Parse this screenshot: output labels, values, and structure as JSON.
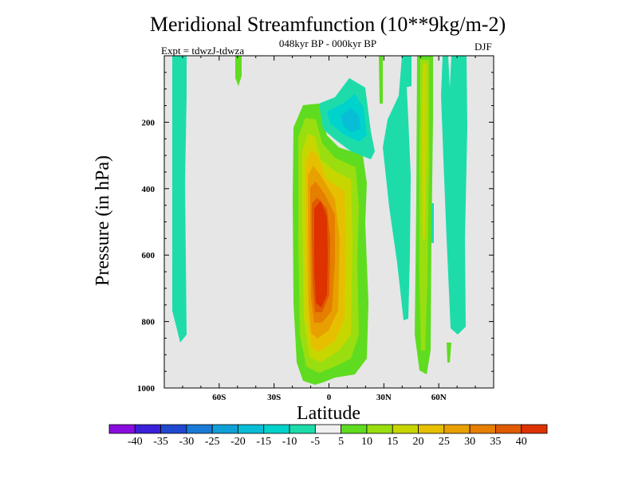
{
  "title": "Meridional Streamfunction (10**9kg/m-2)",
  "subtitle": "048kyr BP - 000kyr BP",
  "left_label": "Expt = tdwzJ-tdwza",
  "right_label": "DJF",
  "background_color": "#e6e6e6",
  "chart_data": {
    "type": "heatmap",
    "title": "Meridional Streamfunction (10**9kg/m-2)",
    "xlabel": "Latitude",
    "ylabel": "Pressure (in hPa)",
    "xlim": [
      -90,
      90
    ],
    "ylim": [
      1000,
      0
    ],
    "x_ticks": [
      {
        "value": -60,
        "label": "60S"
      },
      {
        "value": -30,
        "label": "30S"
      },
      {
        "value": 0,
        "label": "0"
      },
      {
        "value": 30,
        "label": "30N"
      },
      {
        "value": 60,
        "label": "60N"
      }
    ],
    "y_ticks": [
      {
        "value": 200,
        "label": "200"
      },
      {
        "value": 400,
        "label": "400"
      },
      {
        "value": 600,
        "label": "600"
      },
      {
        "value": 800,
        "label": "800"
      },
      {
        "value": 1000,
        "label": "1000"
      }
    ],
    "colorbar": {
      "labels": [
        "-40",
        "-35",
        "-30",
        "-25",
        "-20",
        "-15",
        "-10",
        "-5",
        "5",
        "10",
        "15",
        "20",
        "25",
        "30",
        "35",
        "40"
      ],
      "colors": [
        "#8a0de0",
        "#3a20d9",
        "#2048d0",
        "#1a7ad6",
        "#10a0d8",
        "#08bed6",
        "#00d2cc",
        "#1edcaa",
        "#f0f0f0",
        "#60dc20",
        "#9ade10",
        "#c8d600",
        "#e6c000",
        "#e8a000",
        "#e67e00",
        "#e05a00",
        "#de3200"
      ]
    },
    "features": [
      {
        "name": "Main positive cell",
        "lat_range": [
          -15,
          20
        ],
        "p_range": [
          310,
          990
        ],
        "max_level": "40"
      },
      {
        "name": "Upper negative cell",
        "lat_range": [
          -5,
          20
        ],
        "p_range": [
          130,
          320
        ],
        "min_level": "-15"
      },
      {
        "name": "SH high-lat negative band",
        "lat_range": [
          -85,
          -78
        ],
        "p_range": [
          0,
          860
        ],
        "level": "-5"
      },
      {
        "name": "NH subtropical negative band",
        "lat_range": [
          30,
          42
        ],
        "p_range": [
          0,
          800
        ],
        "level": "-5"
      },
      {
        "name": "NH midlatitude positive band",
        "lat_range": [
          48,
          56
        ],
        "p_range": [
          0,
          960
        ],
        "max_level": "15"
      },
      {
        "name": "NH high-lat negative band",
        "lat_range": [
          62,
          70
        ],
        "p_range": [
          0,
          830
        ],
        "level": "-5"
      }
    ]
  }
}
